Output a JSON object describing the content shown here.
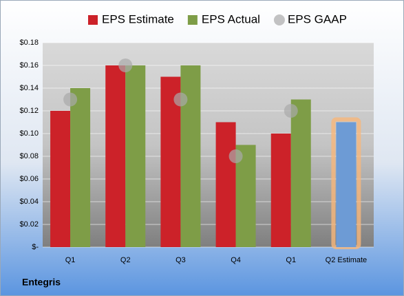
{
  "chart_data": {
    "type": "bar",
    "footer": "Entegris",
    "categories": [
      "Q1",
      "Q2",
      "Q3",
      "Q4",
      "Q1",
      "Q2 Estimate"
    ],
    "series": [
      {
        "name": "EPS Estimate",
        "color": "#cc2229",
        "values": [
          0.12,
          0.16,
          0.15,
          0.11,
          0.1,
          0.11
        ],
        "colors": [
          "#cc2229",
          "#cc2229",
          "#cc2229",
          "#cc2229",
          "#cc2229",
          "#6d9bd5"
        ],
        "glow": "#f7b77b"
      },
      {
        "name": "EPS Actual",
        "color": "#7e9d47",
        "values": [
          0.14,
          0.16,
          0.16,
          0.09,
          0.13,
          null
        ]
      },
      {
        "name": "EPS GAAP",
        "color": "#a9a9a9",
        "marker": "circle",
        "values": [
          0.13,
          0.16,
          0.13,
          0.08,
          0.12,
          null
        ]
      }
    ],
    "ylim": [
      0,
      0.18
    ],
    "yticks": [
      {
        "value": 0,
        "label": "$-"
      },
      {
        "value": 0.02,
        "label": "$0.02"
      },
      {
        "value": 0.04,
        "label": "$0.04"
      },
      {
        "value": 0.06,
        "label": "$0.06"
      },
      {
        "value": 0.08,
        "label": "$0.08"
      },
      {
        "value": 0.1,
        "label": "$0.10"
      },
      {
        "value": 0.12,
        "label": "$0.12"
      },
      {
        "value": 0.14,
        "label": "$0.14"
      },
      {
        "value": 0.16,
        "label": "$0.16"
      },
      {
        "value": 0.18,
        "label": "$0.18"
      }
    ],
    "grid": true,
    "legend": "top"
  }
}
